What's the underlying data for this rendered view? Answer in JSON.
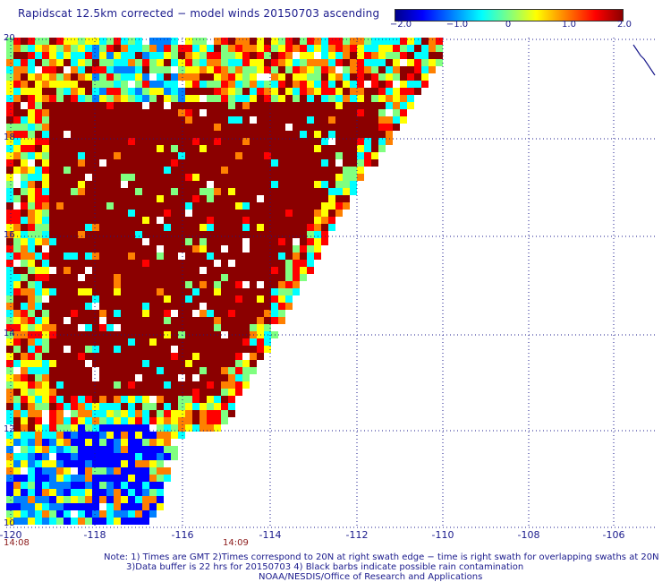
{
  "title": "Rapidscat 12.5km corrected − model winds 20150703 ascending",
  "colorbar": {
    "labels": [
      "−2.0",
      "−1.0",
      "0",
      "1.0",
      "2.0"
    ],
    "colors": [
      "#00008b",
      "#0000ff",
      "#0080ff",
      "#00ffff",
      "#80ff80",
      "#ffff00",
      "#ff8000",
      "#ff0000",
      "#8b0000"
    ]
  },
  "axes": {
    "lon_labels": [
      "-120",
      "-118",
      "-116",
      "-114",
      "-112",
      "-110",
      "-108",
      "-106"
    ],
    "lat_labels": [
      "20",
      "18",
      "16",
      "14",
      "12",
      "10"
    ]
  },
  "times": [
    "14:08",
    "14:09"
  ],
  "notes": {
    "line1": "Note: 1) Times are GMT 2)Times correspond to 20N at right swath edge − time is right swath for overlapping swaths at 20N",
    "line2": "3)Data buffer is 22 hrs for 20150703 4) Black barbs indicate possible rain contamination",
    "line3": "NOAA/NESDIS/Office of Research and Applications"
  }
}
